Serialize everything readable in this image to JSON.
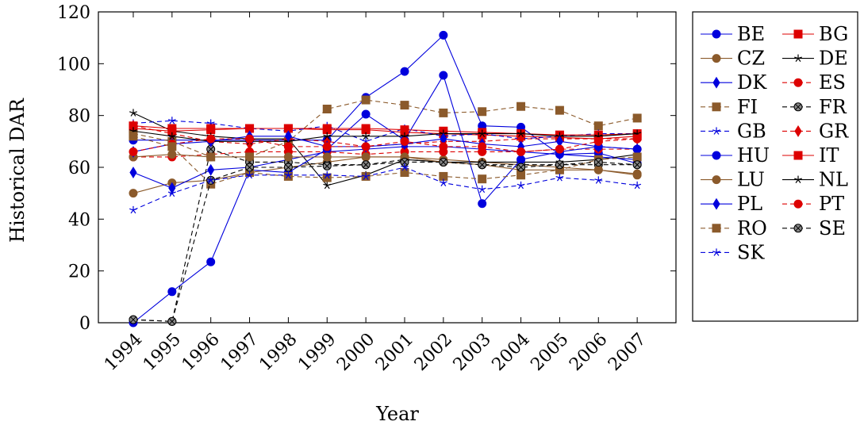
{
  "chart_data": {
    "type": "line",
    "title": "",
    "xlabel": "Year",
    "ylabel": "Historical DAR",
    "x": [
      1994,
      1995,
      1996,
      1997,
      1998,
      1999,
      2000,
      2001,
      2002,
      2003,
      2004,
      2005,
      2006,
      2007
    ],
    "ylim": [
      0,
      120
    ],
    "yticks": [
      0,
      20,
      40,
      60,
      80,
      100,
      120
    ],
    "grid": false,
    "legend_position": "outside-right",
    "series": [
      {
        "name": "BE",
        "color": "#0000dd",
        "dash": "solid",
        "marker": "circle",
        "values": [
          70.5,
          70.5,
          70.5,
          70.5,
          70.5,
          70.5,
          87,
          97,
          111,
          76,
          75.5,
          65,
          65.5,
          61.5
        ]
      },
      {
        "name": "BG",
        "color": "#dd0000",
        "dash": "solid",
        "marker": "square",
        "values": [
          75,
          74,
          74.5,
          75,
          75,
          74.5,
          74.5,
          73.5,
          73,
          72.5,
          72,
          71.5,
          71,
          72
        ]
      },
      {
        "name": "CZ",
        "color": "#8b5a2b",
        "dash": "solid",
        "marker": "circle",
        "values": [
          50,
          54,
          55,
          58,
          60,
          62,
          64,
          64,
          63,
          62,
          61,
          60,
          59,
          57.5
        ]
      },
      {
        "name": "DE",
        "color": "#000000",
        "dash": "solid",
        "marker": "star",
        "values": [
          81,
          74,
          72,
          71,
          71,
          53,
          57,
          63,
          62,
          62,
          62,
          62,
          63,
          65
        ]
      },
      {
        "name": "DK",
        "color": "#0000dd",
        "dash": "solid",
        "marker": "diamond",
        "values": [
          58,
          52,
          59,
          60,
          63,
          66,
          67,
          68,
          68,
          67,
          66,
          65,
          64,
          63
        ]
      },
      {
        "name": "ES",
        "color": "#dd0000",
        "dash": "dashed",
        "marker": "circle",
        "values": [
          64,
          64,
          65,
          66,
          66,
          66,
          65,
          66,
          66,
          66,
          66,
          67,
          67,
          67
        ]
      },
      {
        "name": "FI",
        "color": "#8b5a2b",
        "dash": "dashed",
        "marker": "square",
        "values": [
          73,
          70,
          64,
          64,
          70,
          82.5,
          86,
          84,
          81,
          81.5,
          83.5,
          82,
          76,
          79
        ]
      },
      {
        "name": "FR",
        "color": "#000000",
        "dash": "dashed",
        "marker": "circled-x",
        "values": [
          1.2,
          0.5,
          67,
          62,
          62,
          61,
          61,
          63,
          62,
          61,
          61,
          61,
          61,
          61
        ]
      },
      {
        "name": "GB",
        "color": "#0000dd",
        "dash": "dashed",
        "marker": "star",
        "values": [
          77,
          78,
          77,
          75,
          74,
          76,
          70,
          75,
          72,
          73,
          71,
          72,
          73,
          73
        ]
      },
      {
        "name": "GR",
        "color": "#dd0000",
        "dash": "dashed",
        "marker": "diamond",
        "values": [
          76,
          73,
          70,
          69,
          71,
          70,
          68,
          69,
          70,
          70,
          71,
          71,
          71,
          71
        ]
      },
      {
        "name": "HU",
        "color": "#0000dd",
        "dash": "solid",
        "marker": "circle",
        "values": [
          0,
          12,
          23.5,
          59,
          58,
          67,
          80.5,
          70.5,
          95.5,
          46,
          63,
          66,
          68,
          67
        ]
      },
      {
        "name": "IT",
        "color": "#dd0000",
        "dash": "solid",
        "marker": "square",
        "values": [
          76,
          75,
          75,
          75,
          75,
          75,
          75,
          74.5,
          74,
          73.5,
          73,
          72.5,
          72.5,
          73
        ]
      },
      {
        "name": "LU",
        "color": "#8b5a2b",
        "dash": "solid",
        "marker": "circle",
        "values": [
          64,
          65,
          64,
          64,
          64,
          64,
          64,
          64,
          62,
          61,
          59,
          59,
          59,
          57
        ]
      },
      {
        "name": "NL",
        "color": "#000000",
        "dash": "solid",
        "marker": "star",
        "values": [
          74,
          72,
          70,
          70,
          70,
          72,
          72,
          72,
          73,
          73,
          73,
          72,
          72,
          73
        ]
      },
      {
        "name": "PL",
        "color": "#0000dd",
        "dash": "solid",
        "marker": "diamond",
        "values": [
          66,
          69,
          70,
          72,
          72,
          68,
          68,
          69,
          71,
          69,
          68,
          70,
          68,
          67
        ]
      },
      {
        "name": "PT",
        "color": "#dd0000",
        "dash": "dashed",
        "marker": "circle",
        "values": [
          66,
          69,
          71,
          71,
          68,
          68,
          68,
          70,
          68,
          68,
          66,
          67,
          70,
          71
        ]
      },
      {
        "name": "RO",
        "color": "#8b5a2b",
        "dash": "dashed",
        "marker": "square",
        "values": [
          72,
          68,
          53.5,
          58,
          56.5,
          56,
          56.5,
          58,
          56.5,
          55.5,
          57,
          59,
          63,
          64
        ]
      },
      {
        "name": "SE",
        "color": "#000000",
        "dash": "dashed",
        "marker": "circled-x",
        "values": [
          1.2,
          0.5,
          55,
          60,
          60,
          60.5,
          61,
          62,
          62,
          61,
          60,
          61,
          62,
          61
        ]
      },
      {
        "name": "SK",
        "color": "#0000dd",
        "dash": "dashed",
        "marker": "star",
        "values": [
          43.5,
          50,
          55,
          57,
          57,
          57,
          56.5,
          60,
          54,
          51.5,
          53,
          56,
          55,
          53
        ]
      }
    ]
  }
}
